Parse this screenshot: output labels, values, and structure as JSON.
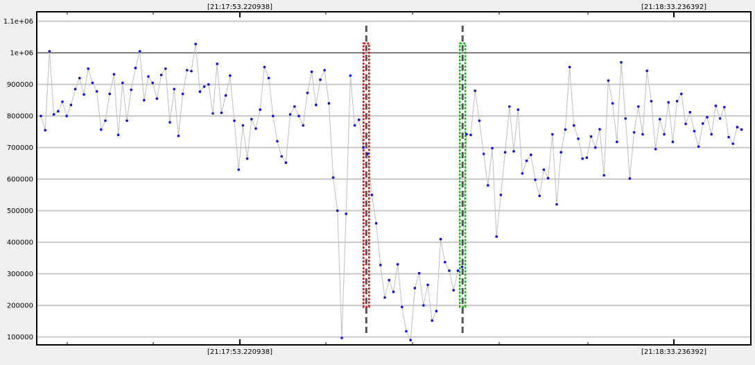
{
  "chart_data": {
    "type": "line",
    "xlabel": "",
    "ylabel": "",
    "ylim": [
      75000,
      1130000
    ],
    "grid": "horizontal",
    "legend": "none",
    "top_time_labels": [
      "[21:17:53.220938]",
      "[21:18:33.236392]"
    ],
    "bottom_time_labels": [
      "[21:17:53.220938]",
      "[21:18:33.236392]"
    ],
    "y_ticks": [
      100000,
      200000,
      300000,
      400000,
      500000,
      600000,
      700000,
      800000,
      900000,
      1000000,
      1100000
    ],
    "y_tick_labels": [
      "100000",
      "200000",
      "300000",
      "400000",
      "500000",
      "600000",
      "700000",
      "800000",
      "900000",
      "1e+06",
      "1.1e+06"
    ],
    "series": [
      {
        "values": [
          800000,
          755000,
          1005000,
          805000,
          815000,
          845000,
          800000,
          835000,
          885000,
          920000,
          868000,
          950000,
          905000,
          878000,
          757000,
          785000,
          870000,
          932000,
          740000,
          905000,
          785000,
          883000,
          952000,
          1005000,
          850000,
          925000,
          905000,
          855000,
          930000,
          950000,
          780000,
          885000,
          737000,
          870000,
          945000,
          942000,
          1028000,
          877000,
          893000,
          900000,
          808000,
          965000,
          810000,
          865000,
          928000,
          785000,
          630000,
          770000,
          665000,
          790000,
          760000,
          820000,
          955000,
          920000,
          800000,
          720000,
          672000,
          652000,
          805000,
          830000,
          800000,
          770000,
          873000,
          940000,
          835000,
          915000,
          945000,
          840000,
          605000,
          500000,
          97000,
          490000,
          928000,
          770000,
          788000,
          700000,
          680000,
          550000,
          460000,
          328000,
          225000,
          280000,
          243000,
          330000,
          195000,
          118000,
          90000,
          255000,
          302000,
          200000,
          265000,
          152000,
          182000,
          410000,
          337000,
          310000,
          248000,
          310000,
          322000,
          742000,
          740000,
          880000,
          785000,
          680000,
          580000,
          698000,
          418000,
          550000,
          685000,
          830000,
          688000,
          820000,
          618000,
          658000,
          677000,
          598000,
          547000,
          630000,
          603000,
          742000,
          520000,
          685000,
          757000,
          955000,
          770000,
          728000,
          665000,
          668000,
          735000,
          700000,
          758000,
          612000,
          912000,
          840000,
          718000,
          970000,
          792000,
          602000,
          748000,
          830000,
          742000,
          943000,
          847000,
          695000,
          790000,
          742000,
          843000,
          718000,
          847000,
          870000,
          775000,
          812000,
          752000,
          703000,
          776000,
          796000,
          742000,
          832000,
          792000,
          828000,
          733000,
          712000,
          765000,
          757000
        ],
        "color": "#0000ff",
        "line_color": "#bfbfbf"
      }
    ],
    "markers": [
      {
        "name": "red-marker",
        "index": 75.7,
        "color": "#e00000",
        "top": 1030000,
        "bottom": 195000
      },
      {
        "name": "green-marker",
        "index": 98.1,
        "color": "#00bb00",
        "top": 1030000,
        "bottom": 195000
      }
    ],
    "cursors": [
      {
        "name": "dashed-cursor-left",
        "index": 75.7,
        "color": "#555555"
      },
      {
        "name": "dashed-cursor-right",
        "index": 98.1,
        "color": "#555555"
      }
    ]
  }
}
